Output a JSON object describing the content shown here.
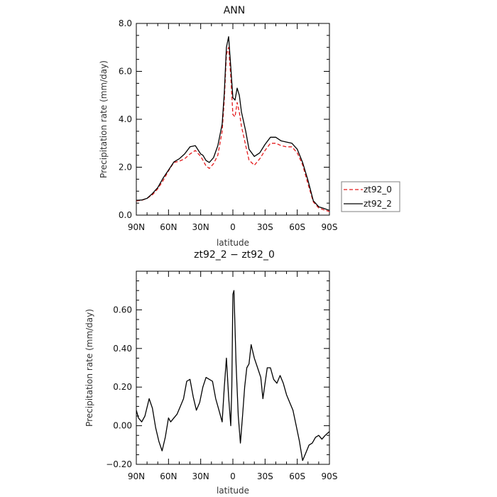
{
  "chart_data": [
    {
      "type": "line",
      "title": "ANN",
      "xlabel": "latitude",
      "ylabel": "Precipitation rate (mm/day)",
      "xlim": [
        90,
        -90
      ],
      "ylim": [
        0,
        8
      ],
      "x_ticks": [
        90,
        60,
        30,
        0,
        -30,
        -60,
        -90
      ],
      "x_tick_labels": [
        "90N",
        "60N",
        "30N",
        "0",
        "30S",
        "60S",
        "90S"
      ],
      "y_ticks": [
        0,
        2,
        4,
        6,
        8
      ],
      "y_tick_labels": [
        "0.0",
        "2.0",
        "4.0",
        "6.0",
        "8.0"
      ],
      "legend_position": "right-middle",
      "series": [
        {
          "name": "zt92_0",
          "color": "#e41a1c",
          "style": "dashed",
          "x": [
            90,
            85,
            80,
            75,
            70,
            65,
            60,
            55,
            50,
            45,
            40,
            35,
            30,
            28,
            25,
            22,
            18,
            14,
            10,
            8,
            6,
            4,
            2,
            0,
            -2,
            -4,
            -6,
            -8,
            -10,
            -12,
            -15,
            -20,
            -25,
            -30,
            -35,
            -40,
            -45,
            -50,
            -55,
            -60,
            -65,
            -70,
            -75,
            -80,
            -85,
            -90
          ],
          "y": [
            0.6,
            0.62,
            0.7,
            0.85,
            1.1,
            1.45,
            1.85,
            2.2,
            2.25,
            2.35,
            2.55,
            2.7,
            2.45,
            2.3,
            2.05,
            1.95,
            2.15,
            2.5,
            3.5,
            4.8,
            6.7,
            7.0,
            5.8,
            4.2,
            4.1,
            4.7,
            4.3,
            3.7,
            3.3,
            2.9,
            2.3,
            2.08,
            2.35,
            2.7,
            3.0,
            3.0,
            2.9,
            2.85,
            2.85,
            2.6,
            2.1,
            1.3,
            0.55,
            0.3,
            0.22,
            0.15
          ]
        },
        {
          "name": "zt92_2",
          "color": "#000000",
          "style": "solid",
          "x": [
            90,
            85,
            80,
            75,
            70,
            65,
            60,
            55,
            50,
            45,
            40,
            35,
            30,
            28,
            25,
            22,
            18,
            14,
            10,
            8,
            6,
            4,
            2,
            0,
            -2,
            -4,
            -6,
            -8,
            -10,
            -12,
            -15,
            -20,
            -25,
            -30,
            -35,
            -40,
            -45,
            -50,
            -55,
            -60,
            -65,
            -70,
            -75,
            -80,
            -85,
            -90
          ],
          "y": [
            0.62,
            0.63,
            0.7,
            0.9,
            1.15,
            1.55,
            1.88,
            2.22,
            2.35,
            2.55,
            2.85,
            2.9,
            2.55,
            2.5,
            2.28,
            2.2,
            2.4,
            2.9,
            3.8,
            5.1,
            7.0,
            7.45,
            6.2,
            4.9,
            4.8,
            5.3,
            5.0,
            4.3,
            3.9,
            3.5,
            2.75,
            2.45,
            2.6,
            2.95,
            3.25,
            3.25,
            3.1,
            3.05,
            3.0,
            2.75,
            2.2,
            1.45,
            0.6,
            0.35,
            0.28,
            0.2
          ]
        }
      ]
    },
    {
      "type": "line",
      "title": "zt92_2 − zt92_0",
      "xlabel": "latitude",
      "ylabel": "Precipitation rate (mm/day)",
      "xlim": [
        90,
        -90
      ],
      "ylim": [
        -0.2,
        0.8
      ],
      "x_ticks": [
        90,
        60,
        30,
        0,
        -30,
        -60,
        -90
      ],
      "x_tick_labels": [
        "90N",
        "60N",
        "30N",
        "0",
        "30S",
        "60S",
        "90S"
      ],
      "y_ticks": [
        -0.2,
        0,
        0.2,
        0.4,
        0.6
      ],
      "y_tick_labels": [
        "−0.20",
        "0.00",
        "0.20",
        "0.40",
        "0.60"
      ],
      "series": [
        {
          "color": "#000000",
          "style": "solid",
          "x": [
            90,
            88,
            85,
            82,
            78,
            75,
            72,
            69,
            66,
            63,
            60,
            58,
            55,
            52,
            49,
            46,
            43,
            40,
            37,
            34,
            31,
            28,
            25,
            22,
            19,
            16,
            13,
            10,
            8,
            6,
            4,
            2,
            1,
            0,
            -1,
            -3,
            -5,
            -7,
            -9,
            -11,
            -13,
            -15,
            -17,
            -20,
            -23,
            -26,
            -28,
            -30,
            -32,
            -35,
            -38,
            -41,
            -44,
            -47,
            -50,
            -53,
            -56,
            -59,
            -62,
            -65,
            -68,
            -71,
            -74,
            -77,
            -80,
            -83,
            -86,
            -88,
            -90
          ],
          "y": [
            0.08,
            0.04,
            0.02,
            0.05,
            0.14,
            0.09,
            -0.01,
            -0.08,
            -0.13,
            -0.06,
            0.04,
            0.02,
            0.04,
            0.06,
            0.1,
            0.14,
            0.23,
            0.24,
            0.15,
            0.08,
            0.12,
            0.2,
            0.25,
            0.24,
            0.23,
            0.14,
            0.08,
            0.02,
            0.2,
            0.35,
            0.15,
            0.0,
            0.2,
            0.68,
            0.7,
            0.32,
            0.05,
            -0.09,
            0.05,
            0.2,
            0.3,
            0.32,
            0.42,
            0.35,
            0.3,
            0.25,
            0.14,
            0.22,
            0.3,
            0.3,
            0.24,
            0.22,
            0.26,
            0.22,
            0.16,
            0.12,
            0.08,
            0.0,
            -0.08,
            -0.18,
            -0.14,
            -0.1,
            -0.09,
            -0.06,
            -0.05,
            -0.07,
            -0.05,
            -0.04,
            -0.03
          ]
        }
      ]
    }
  ]
}
